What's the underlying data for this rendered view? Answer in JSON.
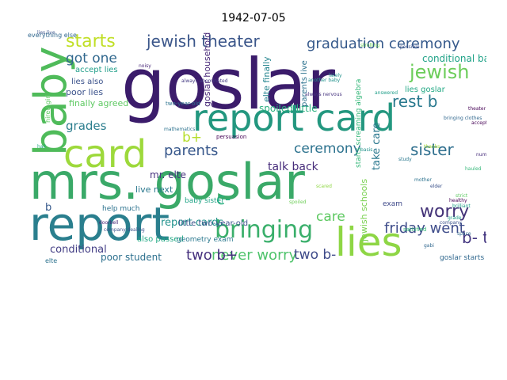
{
  "title": "1942-07-05",
  "words": [
    {
      "text": "goslar",
      "color": "#3b1c6b"
    },
    {
      "text": "mrs. goslar",
      "color": "#3aa968"
    },
    {
      "text": "report card",
      "color": "#23977f"
    },
    {
      "text": "report",
      "color": "#2a7f8e"
    },
    {
      "text": "baby",
      "color": "#4fbb5a"
    },
    {
      "text": "card",
      "color": "#9dd93b"
    },
    {
      "text": "lies",
      "color": "#8ed645"
    },
    {
      "text": "bringing",
      "color": "#3aaf6b"
    },
    {
      "text": "starts",
      "color": "#c0df25"
    },
    {
      "text": "jewish theater",
      "color": "#3b568a"
    },
    {
      "text": "graduation ceremony",
      "color": "#35598b"
    },
    {
      "text": "jewish",
      "color": "#6ccd5a"
    },
    {
      "text": "parents",
      "color": "#37578b"
    },
    {
      "text": "sister",
      "color": "#2f6f8e"
    },
    {
      "text": "worry",
      "color": "#433277"
    },
    {
      "text": "ceremony",
      "color": "#2c728e"
    },
    {
      "text": "care",
      "color": "#5ec962"
    },
    {
      "text": "friday went",
      "color": "#3e4c8a"
    },
    {
      "text": "rest b",
      "color": "#29798e"
    },
    {
      "text": "got one",
      "color": "#31688e"
    },
    {
      "text": "grades",
      "color": "#2c7e8e"
    },
    {
      "text": "never worry",
      "color": "#4ec36b"
    },
    {
      "text": "two b-",
      "color": "#3e4a89"
    },
    {
      "text": "two b+",
      "color": "#46317e"
    },
    {
      "text": "b- two",
      "color": "#453781"
    },
    {
      "text": "c-",
      "color": "#2ab07f"
    },
    {
      "text": "b+",
      "color": "#b5de2b"
    },
    {
      "text": "b",
      "color": "#375a8c"
    },
    {
      "text": "talk back",
      "color": "#472d7b"
    },
    {
      "text": "take care",
      "color": "#2a778e"
    },
    {
      "text": "conditional basis",
      "color": "#1fa287"
    },
    {
      "text": "conditional",
      "color": "#433e85"
    },
    {
      "text": "poor student",
      "color": "#2d708e"
    },
    {
      "text": "report cards",
      "color": "#21918c"
    },
    {
      "text": "spoiled little",
      "color": "#2ab07f"
    },
    {
      "text": "mr. elte",
      "color": "#46327e"
    },
    {
      "text": "elte finally",
      "color": "#25848e"
    },
    {
      "text": "finally agreed",
      "color": "#5ec962"
    },
    {
      "text": "poor lies",
      "color": "#3b528b"
    },
    {
      "text": "accept lies",
      "color": "#1f9e89"
    },
    {
      "text": "lies also",
      "color": "#3b528b"
    },
    {
      "text": "parents live",
      "color": "#2c728e"
    },
    {
      "text": "lies goslar",
      "color": "#22a884"
    },
    {
      "text": "jewish schools",
      "color": "#7ad151"
    },
    {
      "text": "also passed",
      "color": "#22a884"
    },
    {
      "text": "little two-year-old",
      "color": "#3b528b"
    },
    {
      "text": "help much",
      "color": "#2c728e"
    },
    {
      "text": "live next",
      "color": "#2a788e"
    },
    {
      "text": "elte",
      "color": "#2c728e"
    },
    {
      "text": "goslar household",
      "color": "#482878"
    },
    {
      "text": "baby sister",
      "color": "#20a486"
    },
    {
      "text": "goslar starts",
      "color": "#31688e"
    },
    {
      "text": "hired girl",
      "color": "#5ec962"
    },
    {
      "text": "geometry exam",
      "color": "#2a788e"
    },
    {
      "text": "exam",
      "color": "#3e4989"
    },
    {
      "text": "starts screaming algebra",
      "color": "#35b779"
    },
    {
      "text": "two-year-old",
      "color": "#2c728e"
    },
    {
      "text": "always abominated",
      "color": "#443a83"
    },
    {
      "text": "lies live",
      "color": "#3b528b"
    },
    {
      "text": "persuasion",
      "color": "#440154"
    },
    {
      "text": "doorbell",
      "color": "#482677"
    },
    {
      "text": "bringing clothes",
      "color": "#31688e"
    },
    {
      "text": "company dealing",
      "color": "#3b528b"
    },
    {
      "text": "another baby",
      "color": "#21918c"
    },
    {
      "text": "always nervous",
      "color": "#46337f"
    },
    {
      "text": "scared",
      "color": "#8fd744"
    },
    {
      "text": "answered",
      "color": "#1f9e89"
    },
    {
      "text": "strolling",
      "color": "#6ece58"
    },
    {
      "text": "accept",
      "color": "#440154"
    },
    {
      "text": "mother",
      "color": "#2c728e"
    },
    {
      "text": "grade",
      "color": "#1f9e89"
    },
    {
      "text": "company",
      "color": "#3b528b"
    },
    {
      "text": "space",
      "color": "#31688e"
    },
    {
      "text": "hauled",
      "color": "#35b779"
    },
    {
      "text": "healthy",
      "color": "#440154"
    },
    {
      "text": "number",
      "color": "#472d7b"
    },
    {
      "text": "thanks",
      "color": "#a2da37"
    },
    {
      "text": "elder",
      "color": "#3b528b"
    },
    {
      "text": "study",
      "color": "#2a788e"
    },
    {
      "text": "lately",
      "color": "#21918c"
    },
    {
      "text": "satisfied",
      "color": "#35b779"
    },
    {
      "text": "gabi",
      "color": "#31688e"
    },
    {
      "text": "basis",
      "color": "#21918c"
    },
    {
      "text": "noisy",
      "color": "#482878"
    },
    {
      "text": "strict",
      "color": "#5ec962"
    },
    {
      "text": "brilliant",
      "color": "#1fa187"
    },
    {
      "text": "mathematics",
      "color": "#2c728e"
    },
    {
      "text": "spoiled",
      "color": "#6ece58"
    },
    {
      "text": "hall",
      "color": "#22a884"
    },
    {
      "text": "possible",
      "color": "#3b528b"
    },
    {
      "text": "theater",
      "color": "#440154"
    },
    {
      "text": "everything else",
      "color": "#31688e"
    }
  ]
}
